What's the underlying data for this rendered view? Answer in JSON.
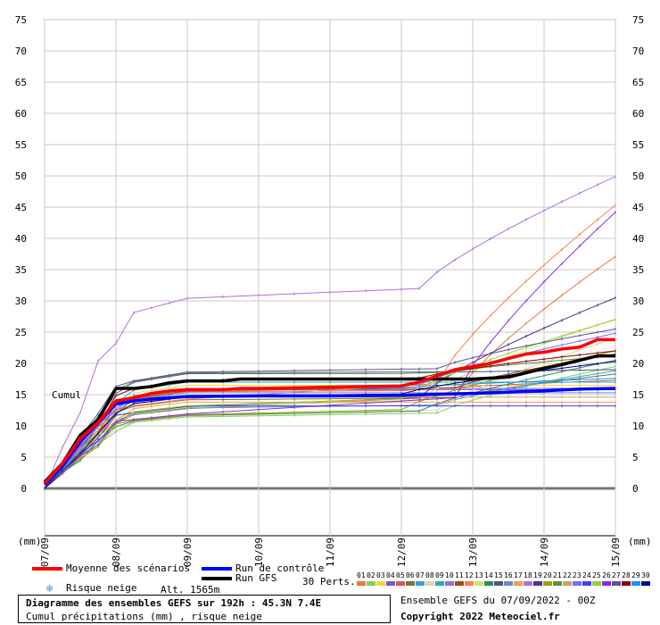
{
  "chart_data": {
    "type": "line",
    "title": "Diagramme des ensembles GEFS sur 192h : 45.3N 7.4E",
    "subtitle": "Cumul précipitations (mm) , risque neige",
    "ylabel_left": "(mm)",
    "ylabel_right": "(mm)",
    "y_annotation": "Cumul",
    "ylim": [
      0,
      75
    ],
    "y_ticks": [
      0,
      5,
      10,
      15,
      20,
      25,
      30,
      35,
      40,
      45,
      50,
      55,
      60,
      65,
      70,
      75
    ],
    "x_ticks": [
      "07/09",
      "08/09",
      "09/09",
      "10/09",
      "11/09",
      "12/09",
      "13/09",
      "14/09",
      "15/09"
    ],
    "x_hours": [
      0,
      24,
      48,
      72,
      96,
      120,
      144,
      168,
      192
    ],
    "grid": true,
    "series": [
      {
        "name": "Moyenne des scénarios",
        "color": "#ff0000",
        "width": 3.5,
        "x": [
          0,
          6,
          12,
          18,
          24,
          30,
          36,
          42,
          48,
          54,
          60,
          66,
          72,
          96,
          120,
          126,
          132,
          138,
          144,
          150,
          156,
          162,
          168,
          174,
          180,
          186,
          192
        ],
        "y": [
          0.8,
          4,
          8,
          10.5,
          14,
          14.5,
          15.2,
          15.6,
          15.8,
          15.8,
          15.8,
          16,
          16,
          16.2,
          16.4,
          17,
          18,
          19,
          19.5,
          20,
          20.8,
          21.5,
          21.8,
          22.3,
          22.6,
          23.8,
          23.8
        ]
      },
      {
        "name": "Run de contrôle",
        "color": "#0000ff",
        "width": 3.5,
        "x": [
          0,
          6,
          12,
          18,
          24,
          30,
          36,
          42,
          48,
          72,
          96,
          120,
          144,
          168,
          180,
          192
        ],
        "y": [
          0.6,
          3.5,
          7.5,
          10.5,
          13.5,
          14,
          14.3,
          14.5,
          14.7,
          14.8,
          14.8,
          14.9,
          15.2,
          15.6,
          15.9,
          16
        ]
      },
      {
        "name": "Run GFS",
        "color": "#000000",
        "width": 3.5,
        "x": [
          0,
          6,
          12,
          18,
          24,
          30,
          36,
          42,
          48,
          54,
          60,
          66,
          72,
          96,
          120,
          144,
          156,
          162,
          168,
          174,
          180,
          186,
          192
        ],
        "y": [
          1,
          4,
          8.5,
          11,
          16,
          16,
          16.3,
          16.9,
          17.2,
          17.2,
          17.2,
          17.5,
          17.5,
          17.5,
          17.5,
          17.5,
          17.8,
          18.5,
          19.2,
          19.8,
          20.5,
          21.2,
          21.2
        ]
      }
    ],
    "perturbations_label": "30 Perts.",
    "perturbations": [
      {
        "id": "01",
        "color": "#e8783c",
        "final": 37.1
      },
      {
        "id": "02",
        "color": "#7fcf5f",
        "final": 19.5
      },
      {
        "id": "03",
        "color": "#ffd23c",
        "final": 16.5
      },
      {
        "id": "04",
        "color": "#7b57d6",
        "final": 15.8
      },
      {
        "id": "05",
        "color": "#d05a5a",
        "final": 17.3
      },
      {
        "id": "06",
        "color": "#6b7b2a",
        "final": 18.3
      },
      {
        "id": "07",
        "color": "#3c9ce8",
        "final": 18.8
      },
      {
        "id": "08",
        "color": "#e8d0a8",
        "final": 24.0
      },
      {
        "id": "09",
        "color": "#20b2aa",
        "final": 17.0
      },
      {
        "id": "10",
        "color": "#9370db",
        "final": 16.0
      },
      {
        "id": "11",
        "color": "#9b4f14",
        "final": 21.5
      },
      {
        "id": "12",
        "color": "#ff7f50",
        "final": 45.3
      },
      {
        "id": "13",
        "color": "#c8e86c",
        "final": 27.1
      },
      {
        "id": "14",
        "color": "#2e8b57",
        "final": 20.5
      },
      {
        "id": "15",
        "color": "#4a5a7a",
        "final": 19.0
      },
      {
        "id": "16",
        "color": "#6a8ad0",
        "final": 15.3
      },
      {
        "id": "17",
        "color": "#ff9a40",
        "final": 13.8
      },
      {
        "id": "18",
        "color": "#b070e0",
        "final": 49.9
      },
      {
        "id": "19",
        "color": "#4f2f8f",
        "final": 30.5
      },
      {
        "id": "20",
        "color": "#a0a000",
        "final": 22.0
      },
      {
        "id": "21",
        "color": "#5f8f3f",
        "final": 21.2
      },
      {
        "id": "22",
        "color": "#d0a060",
        "final": 14.6
      },
      {
        "id": "23",
        "color": "#7070ff",
        "final": 24.8
      },
      {
        "id": "24",
        "color": "#3f3fff",
        "final": 13.2
      },
      {
        "id": "25",
        "color": "#9acd32",
        "final": 27.0
      },
      {
        "id": "26",
        "color": "#8a2be2",
        "final": 44.2
      },
      {
        "id": "27",
        "color": "#6050a0",
        "final": 25.5
      },
      {
        "id": "28",
        "color": "#8b0000",
        "final": 22.0
      },
      {
        "id": "29",
        "color": "#1e90ff",
        "final": 17.6
      },
      {
        "id": "30",
        "color": "#00008b",
        "final": 20.3
      }
    ],
    "legend_placement": "bottom"
  },
  "legend": {
    "mean_label": "Moyenne des scénarios",
    "control_label": "Run de contrôle",
    "gfs_label": "Run GFS",
    "snow_label": "Risque neige",
    "snow_icon": "snowflake-icon",
    "altitude": "Alt. 1565m",
    "perts_label": "30 Perts."
  },
  "footer": {
    "title": "Diagramme des ensembles GEFS sur 192h : 45.3N 7.4E",
    "subtitle": "Cumul précipitations (mm) , risque neige",
    "run_info": "Ensemble GEFS du 07/09/2022 - 00Z",
    "copyright": "Copyright 2022 Meteociel.fr"
  }
}
